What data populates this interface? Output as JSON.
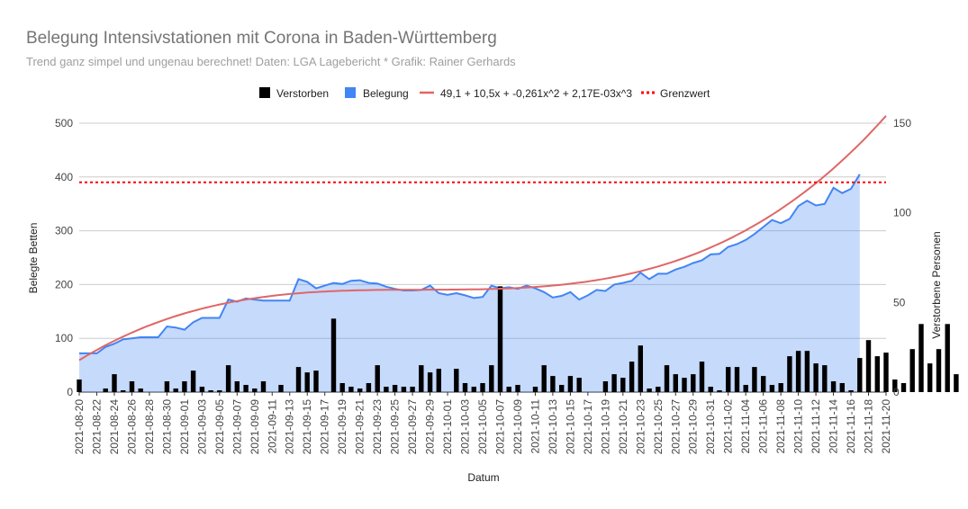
{
  "chart_data": {
    "type": "combo",
    "title": "Belegung Intensivstationen mit Corona in Baden-Württemberg",
    "subtitle": "Trend ganz simpel und ungenau berechnet! Daten: LGA Lagebericht * Grafik: Rainer Gerhards",
    "xlabel": "Datum",
    "ylabel_left": "Belegte Betten",
    "ylabel_right": "Verstorbene Personen",
    "ylim_left": [
      0,
      500
    ],
    "ylim_right": [
      0,
      150
    ],
    "yticks_left": [
      "0",
      "100",
      "200",
      "300",
      "400",
      "500"
    ],
    "yticks_right": [
      "0",
      "50",
      "100",
      "150"
    ],
    "grid": true,
    "legend_position": "top",
    "x_tick_labels": [
      "2021-08-20",
      "2021-08-22",
      "2021-08-24",
      "2021-08-26",
      "2021-08-28",
      "2021-08-30",
      "2021-09-01",
      "2021-09-03",
      "2021-09-05",
      "2021-09-07",
      "2021-09-09",
      "2021-09-11",
      "2021-09-13",
      "2021-09-15",
      "2021-09-17",
      "2021-09-19",
      "2021-09-21",
      "2021-09-23",
      "2021-09-25",
      "2021-09-27",
      "2021-09-29",
      "2021-10-01",
      "2021-10-03",
      "2021-10-05",
      "2021-10-07",
      "2021-10-09",
      "2021-10-11",
      "2021-10-13",
      "2021-10-15",
      "2021-10-17",
      "2021-10-19",
      "2021-10-21",
      "2021-10-23",
      "2021-10-25",
      "2021-10-27",
      "2021-10-29",
      "2021-10-31",
      "2021-11-02",
      "2021-11-04",
      "2021-11-06",
      "2021-11-08",
      "2021-11-10",
      "2021-11-12",
      "2021-11-14",
      "2021-11-16",
      "2021-11-18",
      "2021-11-20"
    ],
    "x_start": "2021-08-20",
    "series": [
      {
        "name": "Verstorben",
        "type": "bar",
        "axis": "right",
        "color": "#000000",
        "values": [
          7,
          0,
          0,
          2,
          10,
          1,
          6,
          2,
          0,
          0,
          6,
          2,
          6,
          12,
          3,
          1,
          1,
          15,
          6,
          4,
          2,
          6,
          0,
          4,
          0,
          14,
          11,
          12,
          0,
          41,
          5,
          3,
          2,
          5,
          15,
          3,
          4,
          3,
          3,
          15,
          11,
          13,
          0,
          13,
          5,
          3,
          5,
          15,
          59,
          3,
          4,
          0,
          3,
          15,
          9,
          4,
          9,
          8,
          0,
          0,
          6,
          10,
          8,
          17,
          26,
          2,
          3,
          15,
          10,
          8,
          10,
          17,
          3,
          1,
          14,
          14,
          4,
          14,
          9,
          4,
          5,
          20,
          23,
          23,
          16,
          15,
          6,
          5,
          1,
          19,
          29,
          20,
          22,
          7,
          5,
          24,
          38,
          16,
          24,
          38,
          10,
          0,
          45
        ]
      },
      {
        "name": "Belegung",
        "type": "area",
        "axis": "left",
        "color": "#4285f4",
        "values": [
          72,
          72,
          72,
          84,
          90,
          98,
          100,
          102,
          102,
          102,
          122,
          120,
          116,
          130,
          138,
          138,
          138,
          172,
          168,
          174,
          172,
          170,
          170,
          170,
          170,
          210,
          205,
          193,
          198,
          203,
          201,
          207,
          208,
          203,
          202,
          196,
          192,
          189,
          189,
          190,
          198,
          184,
          181,
          184,
          180,
          175,
          177,
          198,
          193,
          195,
          192,
          198,
          193,
          186,
          176,
          179,
          186,
          172,
          180,
          190,
          188,
          200,
          203,
          207,
          222,
          210,
          220,
          220,
          228,
          233,
          240,
          245,
          256,
          257,
          270,
          275,
          283,
          294,
          307,
          320,
          314,
          322,
          346,
          356,
          347,
          350,
          380,
          370,
          378,
          405
        ]
      },
      {
        "name": "49,1 + 10,5x + -0,261x^2 + 2,17E-03x^3",
        "type": "trendline",
        "axis": "left",
        "color": "#e06666",
        "coefficients": [
          49.1,
          10.5,
          -0.261,
          0.00217
        ]
      },
      {
        "name": "Grenzwert",
        "type": "threshold",
        "axis": "left",
        "color": "#ff0000",
        "value": 390
      }
    ]
  }
}
